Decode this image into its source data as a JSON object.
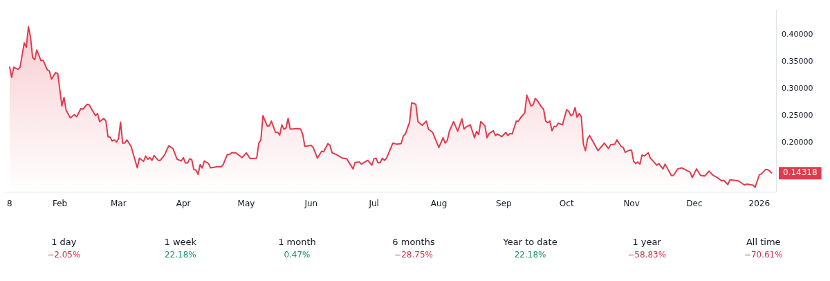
{
  "chart_data": [
    {
      "type": "area",
      "x": [
        "2025-01-08",
        "2025-01-09",
        "2025-01-10",
        "2025-01-12",
        "2025-01-13",
        "2025-01-15",
        "2025-01-16",
        "2025-01-17",
        "2025-01-18",
        "2025-01-19",
        "2025-01-20",
        "2025-01-21",
        "2025-01-23",
        "2025-01-24",
        "2025-01-26",
        "2025-01-27",
        "2025-01-28",
        "2025-01-30",
        "2025-01-31",
        "2025-02-02",
        "2025-02-03",
        "2025-02-04",
        "2025-02-06",
        "2025-02-08",
        "2025-02-09",
        "2025-02-10",
        "2025-02-11",
        "2025-02-12",
        "2025-02-14",
        "2025-02-15",
        "2025-02-18",
        "2025-02-19",
        "2025-02-20",
        "2025-02-22",
        "2025-02-23",
        "2025-02-24",
        "2025-02-25",
        "2025-02-26",
        "2025-02-27",
        "2025-02-28",
        "2025-03-01",
        "2025-03-02",
        "2025-03-03",
        "2025-03-04",
        "2025-03-05",
        "2025-03-07",
        "2025-03-10",
        "2025-03-11",
        "2025-03-13",
        "2025-03-14",
        "2025-03-15",
        "2025-03-16",
        "2025-03-17",
        "2025-03-18",
        "2025-03-20",
        "2025-03-21",
        "2025-03-23",
        "2025-03-25",
        "2025-03-27",
        "2025-03-29",
        "2025-03-31",
        "2025-04-01",
        "2025-04-02",
        "2025-04-03",
        "2025-04-04",
        "2025-04-05",
        "2025-04-06",
        "2025-04-07",
        "2025-04-08",
        "2025-04-09",
        "2025-04-10",
        "2025-04-11",
        "2025-04-13",
        "2025-04-14",
        "2025-04-17",
        "2025-04-19",
        "2025-04-20",
        "2025-04-22",
        "2025-04-23",
        "2025-04-24",
        "2025-04-26",
        "2025-04-29",
        "2025-05-01",
        "2025-05-03",
        "2025-05-06",
        "2025-05-07",
        "2025-05-08",
        "2025-05-09",
        "2025-05-11",
        "2025-05-12",
        "2025-05-13",
        "2025-05-15",
        "2025-05-16",
        "2025-05-17",
        "2025-05-18",
        "2025-05-19",
        "2025-05-20",
        "2025-05-21",
        "2025-05-22",
        "2025-05-26",
        "2025-05-27",
        "2025-05-28",
        "2025-05-29",
        "2025-06-01",
        "2025-06-02",
        "2025-06-04",
        "2025-06-06",
        "2025-06-07",
        "2025-06-09",
        "2025-06-10",
        "2025-06-11",
        "2025-06-13",
        "2025-06-16",
        "2025-06-18",
        "2025-06-21",
        "2025-06-22",
        "2025-06-24",
        "2025-06-25",
        "2025-06-28",
        "2025-06-30",
        "2025-07-01",
        "2025-07-02",
        "2025-07-03",
        "2025-07-04",
        "2025-07-05",
        "2025-07-06",
        "2025-07-07",
        "2025-07-10",
        "2025-07-12",
        "2025-07-14",
        "2025-07-15",
        "2025-07-16",
        "2025-07-18",
        "2025-07-19",
        "2025-07-21",
        "2025-07-22",
        "2025-07-24",
        "2025-07-25",
        "2025-07-26",
        "2025-07-27",
        "2025-07-29",
        "2025-08-01",
        "2025-08-03",
        "2025-08-04",
        "2025-08-05",
        "2025-08-06",
        "2025-08-08",
        "2025-08-10",
        "2025-08-12",
        "2025-08-13",
        "2025-08-14",
        "2025-08-16",
        "2025-08-18",
        "2025-08-19",
        "2025-08-20",
        "2025-08-21",
        "2025-08-23",
        "2025-08-24",
        "2025-08-25",
        "2025-08-27",
        "2025-08-28",
        "2025-08-29",
        "2025-08-31",
        "2025-09-02",
        "2025-09-03",
        "2025-09-04",
        "2025-09-05",
        "2025-09-07",
        "2025-09-08",
        "2025-09-09",
        "2025-09-11",
        "2025-09-12",
        "2025-09-14",
        "2025-09-15",
        "2025-09-16",
        "2025-09-17",
        "2025-09-19",
        "2025-09-20",
        "2025-09-21",
        "2025-09-22",
        "2025-09-23",
        "2025-09-24",
        "2025-09-25",
        "2025-09-26",
        "2025-09-27",
        "2025-09-29",
        "2025-10-01",
        "2025-10-02",
        "2025-10-03",
        "2025-10-04",
        "2025-10-05",
        "2025-10-06",
        "2025-10-07",
        "2025-10-08",
        "2025-10-09",
        "2025-10-10",
        "2025-10-11",
        "2025-10-12",
        "2025-10-16",
        "2025-10-19",
        "2025-10-21",
        "2025-10-22",
        "2025-10-24",
        "2025-10-25",
        "2025-10-27",
        "2025-10-28",
        "2025-10-29",
        "2025-10-31",
        "2025-11-01",
        "2025-11-02",
        "2025-11-03",
        "2025-11-04",
        "2025-11-05",
        "2025-11-06",
        "2025-11-07",
        "2025-11-09",
        "2025-11-10",
        "2025-11-11",
        "2025-11-13",
        "2025-11-14",
        "2025-11-16",
        "2025-11-17",
        "2025-11-20",
        "2025-11-21",
        "2025-11-23",
        "2025-11-25",
        "2025-11-27",
        "2025-11-29",
        "2025-11-30",
        "2025-12-02",
        "2025-12-04",
        "2025-12-06",
        "2025-12-08",
        "2025-12-10",
        "2025-12-12",
        "2025-12-14",
        "2025-12-15",
        "2025-12-17",
        "2025-12-18",
        "2025-12-20",
        "2025-12-22",
        "2025-12-25",
        "2025-12-26",
        "2025-12-29",
        "2025-12-30",
        "2026-01-01",
        "2026-01-02",
        "2026-01-04",
        "2026-01-05",
        "2026-01-06",
        "2026-01-07"
      ],
      "series": [
        {
          "color": "#e23a4c",
          "values": [
            0.341,
            0.321,
            0.34,
            0.336,
            0.34,
            0.385,
            0.377,
            0.415,
            0.396,
            0.358,
            0.354,
            0.372,
            0.352,
            0.353,
            0.335,
            0.333,
            0.318,
            0.33,
            0.328,
            0.268,
            0.284,
            0.26,
            0.246,
            0.252,
            0.248,
            0.255,
            0.263,
            0.262,
            0.271,
            0.27,
            0.25,
            0.254,
            0.239,
            0.245,
            0.24,
            0.211,
            0.21,
            0.203,
            0.205,
            0.201,
            0.207,
            0.238,
            0.199,
            0.199,
            0.205,
            0.193,
            0.153,
            0.171,
            0.165,
            0.175,
            0.169,
            0.172,
            0.167,
            0.176,
            0.167,
            0.167,
            0.177,
            0.194,
            0.189,
            0.169,
            0.166,
            0.172,
            0.162,
            0.162,
            0.17,
            0.168,
            0.15,
            0.149,
            0.141,
            0.159,
            0.153,
            0.166,
            0.161,
            0.153,
            0.155,
            0.155,
            0.159,
            0.178,
            0.178,
            0.181,
            0.181,
            0.172,
            0.181,
            0.17,
            0.171,
            0.199,
            0.205,
            0.25,
            0.231,
            0.231,
            0.24,
            0.219,
            0.219,
            0.214,
            0.233,
            0.225,
            0.227,
            0.245,
            0.225,
            0.226,
            0.225,
            0.215,
            0.193,
            0.195,
            0.191,
            0.171,
            0.184,
            0.183,
            0.198,
            0.195,
            0.181,
            0.178,
            0.171,
            0.17,
            0.151,
            0.163,
            0.164,
            0.16,
            0.167,
            0.158,
            0.17,
            0.171,
            0.162,
            0.163,
            0.171,
            0.167,
            0.171,
            0.199,
            0.197,
            0.198,
            0.212,
            0.216,
            0.238,
            0.274,
            0.271,
            0.239,
            0.232,
            0.236,
            0.24,
            0.225,
            0.219,
            0.191,
            0.209,
            0.199,
            0.204,
            0.221,
            0.239,
            0.221,
            0.244,
            0.225,
            0.229,
            0.233,
            0.209,
            0.221,
            0.215,
            0.239,
            0.231,
            0.209,
            0.217,
            0.222,
            0.213,
            0.216,
            0.211,
            0.219,
            0.213,
            0.217,
            0.216,
            0.24,
            0.24,
            0.246,
            0.255,
            0.288,
            0.268,
            0.27,
            0.282,
            0.278,
            0.266,
            0.262,
            0.24,
            0.237,
            0.24,
            0.222,
            0.23,
            0.23,
            0.236,
            0.233,
            0.261,
            0.258,
            0.25,
            0.252,
            0.265,
            0.247,
            0.254,
            0.248,
            0.197,
            0.185,
            0.207,
            0.213,
            0.185,
            0.199,
            0.189,
            0.196,
            0.197,
            0.205,
            0.193,
            0.191,
            0.182,
            0.186,
            0.186,
            0.165,
            0.161,
            0.164,
            0.16,
            0.177,
            0.175,
            0.181,
            0.171,
            0.167,
            0.158,
            0.161,
            0.151,
            0.16,
            0.139,
            0.139,
            0.151,
            0.153,
            0.149,
            0.145,
            0.135,
            0.151,
            0.139,
            0.138,
            0.147,
            0.139,
            0.135,
            0.129,
            0.13,
            0.122,
            0.131,
            0.13,
            0.129,
            0.121,
            0.123,
            0.121,
            0.117,
            0.14,
            0.142,
            0.15,
            0.15,
            0.147,
            0.143
          ]
        }
      ],
      "xticks": [
        {
          "value": "2025-01-08",
          "label": "8"
        },
        {
          "value": "2025-02-01",
          "label": "Feb"
        },
        {
          "value": "2025-03-01",
          "label": "Mar"
        },
        {
          "value": "2025-04-01",
          "label": "Apr"
        },
        {
          "value": "2025-05-01",
          "label": "May"
        },
        {
          "value": "2025-06-01",
          "label": "Jun"
        },
        {
          "value": "2025-07-01",
          "label": "Jul"
        },
        {
          "value": "2025-08-01",
          "label": "Aug"
        },
        {
          "value": "2025-09-01",
          "label": "Sep"
        },
        {
          "value": "2025-10-01",
          "label": "Oct"
        },
        {
          "value": "2025-11-01",
          "label": "Nov"
        },
        {
          "value": "2025-12-01",
          "label": "Dec"
        },
        {
          "value": "2026-01-01",
          "label": "2026"
        }
      ],
      "xlim": [
        "2025-01-06",
        "2026-01-09"
      ],
      "ylim": [
        0.108,
        0.446
      ],
      "yticks": [
        {
          "value": 0.2,
          "label": "0.20000"
        },
        {
          "value": 0.25,
          "label": "0.25000"
        },
        {
          "value": 0.3,
          "label": "0.30000"
        },
        {
          "value": 0.35,
          "label": "0.35000"
        },
        {
          "value": 0.4,
          "label": "0.40000"
        }
      ],
      "annotations": [
        {
          "text": "0.14318",
          "x": "2026-01-07",
          "y": 0.14318
        }
      ],
      "grid": false,
      "legend": false,
      "marker": "none",
      "line_style": "solid"
    },
    {
      "type": "other",
      "categories": [
        "1 day",
        "1 week",
        "1 month",
        "6 months",
        "Year to date",
        "1 year",
        "All time"
      ],
      "values": [
        -2.05,
        22.18,
        0.47,
        -28.75,
        22.18,
        -58.83,
        -70.61
      ],
      "value_labels": [
        "−2.05%",
        "22.18%",
        "0.47%",
        "−28.75%",
        "22.18%",
        "−58.83%",
        "−70.61%"
      ]
    }
  ]
}
